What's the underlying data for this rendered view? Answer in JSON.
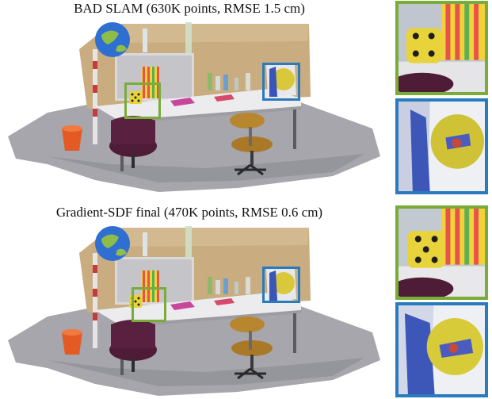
{
  "figure": {
    "top_caption": "BAD SLAM (630K points, RMSE 1.5 cm)",
    "bottom_caption": "Gradient-SDF final (470K points, RMSE 0.6 cm)"
  },
  "colors": {
    "green_box": "#7aac3a",
    "blue_box": "#2a7bbd",
    "background": "#ffffff",
    "floor": "#a8a8ae",
    "wall": "#c8ad82",
    "desk": "#e4e4e6",
    "chair": "#4e1c36",
    "dice": "#e8d33a"
  },
  "icons": {
    "dice": "dice-icon",
    "globe": "globe-icon",
    "swivel_chair": "office-chair-icon",
    "bucket": "orange-bucket-icon"
  }
}
